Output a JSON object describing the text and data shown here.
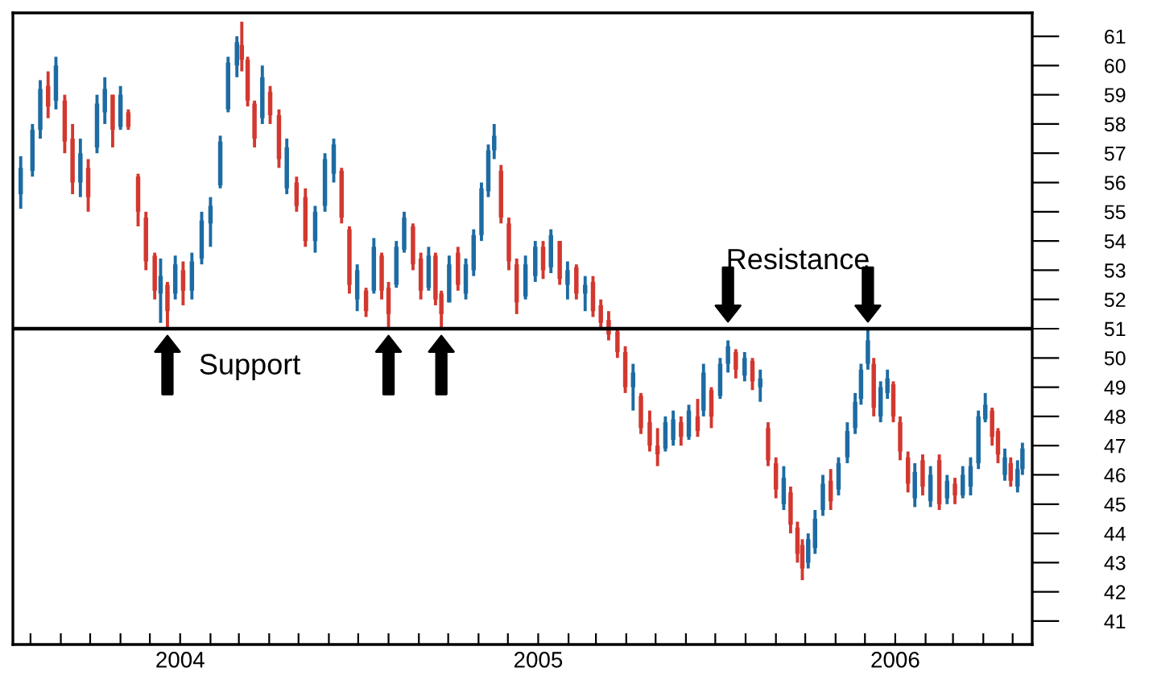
{
  "chart_data": {
    "type": "candlestick",
    "x": [
      "2003-07-22",
      "2003-08-03",
      "2003-08-11",
      "2003-08-19",
      "2003-08-27",
      "2003-09-05",
      "2003-09-13",
      "2003-09-21",
      "2003-09-29",
      "2003-10-08",
      "2003-10-16",
      "2003-10-24",
      "2003-11-01",
      "2003-11-09",
      "2003-11-19",
      "2003-11-27",
      "2003-12-06",
      "2003-12-12",
      "2003-12-19",
      "2003-12-27",
      "2004-01-04",
      "2004-01-13",
      "2004-01-23",
      "2004-02-01",
      "2004-02-11",
      "2004-02-19",
      "2004-02-28",
      "2004-03-04",
      "2004-03-10",
      "2004-03-17",
      "2004-03-25",
      "2004-04-02",
      "2004-04-11",
      "2004-04-19",
      "2004-04-29",
      "2004-05-08",
      "2004-05-18",
      "2004-05-28",
      "2004-06-06",
      "2004-06-14",
      "2004-06-22",
      "2004-06-30",
      "2004-07-09",
      "2004-07-17",
      "2004-07-25",
      "2004-08-01",
      "2004-08-09",
      "2004-08-17",
      "2004-08-26",
      "2004-09-03",
      "2004-09-11",
      "2004-09-18",
      "2004-09-24",
      "2004-10-02",
      "2004-10-11",
      "2004-10-19",
      "2004-10-27",
      "2004-11-04",
      "2004-11-11",
      "2004-11-17",
      "2004-11-24",
      "2004-12-02",
      "2004-12-10",
      "2004-12-19",
      "2004-12-29",
      "2005-01-06",
      "2005-01-14",
      "2005-01-23",
      "2005-01-31",
      "2005-02-09",
      "2005-02-18",
      "2005-02-26",
      "2005-03-06",
      "2005-03-14",
      "2005-03-23",
      "2005-03-31",
      "2005-04-08",
      "2005-04-16",
      "2005-04-25",
      "2005-05-03",
      "2005-05-11",
      "2005-05-19",
      "2005-05-27",
      "2005-06-04",
      "2005-06-13",
      "2005-06-19",
      "2005-06-27",
      "2005-07-06",
      "2005-07-14",
      "2005-07-22",
      "2005-07-31",
      "2005-08-08",
      "2005-08-16",
      "2005-08-24",
      "2005-09-01",
      "2005-09-09",
      "2005-09-16",
      "2005-09-23",
      "2005-09-28",
      "2005-10-04",
      "2005-10-11",
      "2005-10-19",
      "2005-10-27",
      "2005-11-04",
      "2005-11-13",
      "2005-11-21",
      "2005-11-27",
      "2005-12-04",
      "2005-12-10",
      "2005-12-17",
      "2005-12-24",
      "2005-12-30",
      "2006-01-06",
      "2006-01-14",
      "2006-01-21",
      "2006-01-29",
      "2006-02-06",
      "2006-02-15",
      "2006-02-23",
      "2006-03-03",
      "2006-03-11",
      "2006-03-19",
      "2006-03-27",
      "2006-04-03",
      "2006-04-10",
      "2006-04-16",
      "2006-04-23",
      "2006-04-29",
      "2006-05-06",
      "2006-05-11"
    ],
    "ohlc": [
      [
        55.6,
        56.9,
        55.1,
        56.5
      ],
      [
        56.4,
        58.0,
        56.2,
        57.8
      ],
      [
        57.8,
        59.5,
        57.5,
        59.2
      ],
      [
        59.3,
        59.8,
        58.2,
        58.6
      ],
      [
        58.8,
        60.3,
        58.5,
        60.0
      ],
      [
        58.8,
        59.0,
        57.0,
        57.4
      ],
      [
        57.5,
        58.0,
        55.6,
        56.0
      ],
      [
        56.0,
        57.5,
        55.5,
        57.0
      ],
      [
        56.5,
        56.8,
        55.0,
        55.5
      ],
      [
        57.2,
        59.0,
        57.0,
        58.7
      ],
      [
        58.4,
        59.6,
        58.0,
        59.2
      ],
      [
        59.0,
        59.0,
        57.2,
        57.8
      ],
      [
        57.9,
        59.3,
        57.8,
        59.0
      ],
      [
        58.4,
        58.5,
        57.8,
        57.9
      ],
      [
        56.2,
        56.3,
        54.5,
        55.0
      ],
      [
        54.8,
        55.0,
        53.0,
        53.3
      ],
      [
        53.5,
        53.6,
        52.0,
        52.3
      ],
      [
        52.2,
        53.4,
        51.2,
        52.8
      ],
      [
        52.5,
        52.6,
        51.0,
        51.6
      ],
      [
        52.2,
        53.5,
        52.0,
        53.2
      ],
      [
        53.0,
        53.3,
        51.8,
        52.3
      ],
      [
        52.3,
        53.6,
        52.0,
        53.3
      ],
      [
        53.4,
        55.0,
        53.2,
        54.7
      ],
      [
        54.6,
        55.5,
        53.8,
        55.2
      ],
      [
        55.9,
        57.6,
        55.8,
        57.4
      ],
      [
        58.5,
        60.3,
        58.4,
        60.1
      ],
      [
        60.0,
        61.0,
        59.6,
        60.8
      ],
      [
        60.7,
        61.5,
        59.8,
        60.2
      ],
      [
        60.2,
        60.3,
        58.6,
        58.8
      ],
      [
        58.7,
        58.8,
        57.2,
        57.5
      ],
      [
        58.2,
        60.0,
        58.0,
        59.6
      ],
      [
        59.1,
        59.3,
        58.0,
        58.3
      ],
      [
        58.3,
        58.5,
        56.5,
        56.8
      ],
      [
        55.8,
        57.5,
        55.6,
        57.2
      ],
      [
        56.0,
        56.2,
        55.0,
        55.2
      ],
      [
        55.5,
        55.8,
        53.8,
        54.0
      ],
      [
        54.0,
        55.2,
        53.6,
        55.0
      ],
      [
        55.2,
        57.0,
        55.0,
        56.8
      ],
      [
        56.3,
        57.5,
        56.0,
        57.3
      ],
      [
        56.4,
        56.5,
        54.6,
        54.8
      ],
      [
        54.4,
        54.5,
        52.2,
        52.5
      ],
      [
        52.0,
        53.2,
        51.6,
        53.0
      ],
      [
        52.3,
        52.4,
        51.4,
        51.6
      ],
      [
        52.3,
        54.1,
        52.2,
        53.8
      ],
      [
        53.5,
        53.6,
        52.0,
        52.3
      ],
      [
        52.4,
        52.6,
        51.0,
        51.5
      ],
      [
        52.5,
        54.0,
        52.4,
        53.8
      ],
      [
        53.7,
        55.0,
        53.6,
        54.8
      ],
      [
        54.5,
        54.6,
        53.0,
        53.2
      ],
      [
        53.4,
        53.6,
        52.0,
        52.3
      ],
      [
        52.4,
        53.8,
        52.3,
        53.5
      ],
      [
        53.5,
        53.6,
        51.8,
        52.0
      ],
      [
        52.2,
        52.3,
        51.0,
        51.5
      ],
      [
        51.9,
        53.5,
        51.9,
        53.2
      ],
      [
        53.6,
        53.8,
        52.3,
        52.5
      ],
      [
        52.2,
        53.4,
        52.0,
        53.2
      ],
      [
        53.0,
        54.4,
        52.8,
        54.2
      ],
      [
        54.2,
        56.0,
        54.0,
        55.8
      ],
      [
        55.7,
        57.3,
        55.5,
        57.1
      ],
      [
        57.1,
        58.0,
        56.8,
        57.6
      ],
      [
        56.4,
        56.6,
        54.6,
        54.8
      ],
      [
        54.6,
        54.8,
        53.0,
        53.3
      ],
      [
        53.2,
        53.4,
        51.5,
        51.9
      ],
      [
        52.1,
        53.5,
        52.0,
        53.2
      ],
      [
        52.8,
        54.0,
        52.6,
        53.8
      ],
      [
        53.8,
        54.0,
        52.7,
        53.0
      ],
      [
        53.1,
        54.4,
        52.9,
        54.2
      ],
      [
        54.0,
        54.0,
        52.5,
        52.7
      ],
      [
        52.5,
        53.3,
        52.0,
        53.0
      ],
      [
        53.1,
        53.2,
        52.0,
        52.2
      ],
      [
        52.2,
        52.8,
        51.6,
        52.5
      ],
      [
        52.6,
        52.8,
        51.4,
        51.6
      ],
      [
        51.8,
        52.0,
        51.0,
        51.2
      ],
      [
        51.3,
        51.6,
        50.6,
        50.8
      ],
      [
        50.9,
        51.0,
        50.0,
        50.2
      ],
      [
        50.2,
        50.4,
        48.8,
        49.0
      ],
      [
        49.0,
        49.8,
        48.2,
        49.5
      ],
      [
        48.7,
        48.8,
        47.4,
        47.6
      ],
      [
        47.8,
        48.2,
        46.8,
        47.0
      ],
      [
        47.0,
        47.6,
        46.3,
        46.7
      ],
      [
        46.9,
        48.0,
        46.8,
        47.8
      ],
      [
        47.2,
        48.2,
        47.0,
        47.9
      ],
      [
        47.8,
        48.0,
        47.0,
        47.3
      ],
      [
        47.3,
        48.4,
        47.2,
        48.2
      ],
      [
        48.0,
        48.6,
        47.3,
        47.5
      ],
      [
        48.2,
        49.8,
        48.0,
        49.5
      ],
      [
        48.9,
        49.0,
        47.6,
        48.0
      ],
      [
        48.7,
        50.0,
        48.6,
        49.8
      ],
      [
        49.8,
        50.6,
        49.5,
        50.4
      ],
      [
        50.2,
        50.3,
        49.3,
        49.6
      ],
      [
        49.4,
        50.2,
        49.2,
        50.0
      ],
      [
        49.9,
        50.0,
        48.9,
        49.2
      ],
      [
        49.0,
        49.6,
        48.5,
        49.3
      ],
      [
        47.6,
        47.8,
        46.3,
        46.5
      ],
      [
        46.4,
        46.6,
        45.2,
        45.5
      ],
      [
        45.0,
        46.3,
        44.8,
        45.9
      ],
      [
        45.4,
        45.6,
        44.0,
        44.3
      ],
      [
        44.2,
        44.4,
        43.0,
        43.3
      ],
      [
        43.6,
        43.8,
        42.4,
        42.8
      ],
      [
        43.0,
        44.0,
        42.8,
        43.8
      ],
      [
        43.5,
        44.8,
        43.3,
        44.5
      ],
      [
        44.8,
        46.0,
        44.6,
        45.7
      ],
      [
        45.8,
        46.2,
        44.8,
        45.1
      ],
      [
        45.5,
        46.6,
        45.3,
        46.4
      ],
      [
        46.6,
        47.8,
        46.4,
        47.5
      ],
      [
        47.6,
        48.8,
        47.4,
        48.5
      ],
      [
        48.6,
        49.8,
        48.4,
        49.6
      ],
      [
        49.8,
        51.0,
        49.6,
        50.6
      ],
      [
        49.8,
        50.0,
        48.0,
        48.3
      ],
      [
        48.0,
        49.2,
        47.8,
        49.0
      ],
      [
        48.8,
        49.6,
        48.6,
        49.3
      ],
      [
        49.1,
        49.2,
        47.8,
        48.0
      ],
      [
        47.8,
        48.0,
        46.5,
        46.8
      ],
      [
        46.6,
        46.8,
        45.4,
        45.7
      ],
      [
        45.2,
        46.4,
        44.9,
        46.1
      ],
      [
        46.5,
        46.7,
        45.3,
        45.6
      ],
      [
        45.1,
        46.3,
        44.9,
        46.0
      ],
      [
        46.5,
        46.7,
        44.8,
        45.0
      ],
      [
        45.2,
        46.0,
        45.0,
        45.8
      ],
      [
        45.7,
        45.9,
        45.0,
        45.3
      ],
      [
        45.3,
        46.3,
        45.2,
        46.0
      ],
      [
        45.6,
        46.6,
        45.3,
        46.3
      ],
      [
        46.4,
        48.2,
        46.2,
        48.0
      ],
      [
        47.9,
        48.8,
        47.8,
        48.4
      ],
      [
        48.2,
        48.3,
        47.0,
        47.3
      ],
      [
        47.5,
        47.6,
        46.4,
        46.7
      ],
      [
        46.0,
        46.9,
        45.8,
        46.6
      ],
      [
        46.4,
        46.6,
        45.6,
        45.8
      ],
      [
        45.6,
        46.5,
        45.4,
        46.2
      ],
      [
        46.2,
        47.1,
        46.0,
        46.9
      ]
    ],
    "colors": [
      "#1d6ba3",
      "#1d6ba3",
      "#1d6ba3",
      "#d2382f",
      "#1d6ba3",
      "#d2382f",
      "#d2382f",
      "#1d6ba3",
      "#d2382f",
      "#1d6ba3",
      "#1d6ba3",
      "#d2382f",
      "#1d6ba3",
      "#d2382f",
      "#d2382f",
      "#d2382f",
      "#d2382f",
      "#1d6ba3",
      "#d2382f",
      "#1d6ba3",
      "#d2382f",
      "#1d6ba3",
      "#1d6ba3",
      "#1d6ba3",
      "#1d6ba3",
      "#1d6ba3",
      "#1d6ba3",
      "#d2382f",
      "#d2382f",
      "#d2382f",
      "#1d6ba3",
      "#d2382f",
      "#d2382f",
      "#1d6ba3",
      "#d2382f",
      "#d2382f",
      "#1d6ba3",
      "#1d6ba3",
      "#1d6ba3",
      "#d2382f",
      "#d2382f",
      "#1d6ba3",
      "#d2382f",
      "#1d6ba3",
      "#d2382f",
      "#d2382f",
      "#1d6ba3",
      "#1d6ba3",
      "#d2382f",
      "#d2382f",
      "#1d6ba3",
      "#d2382f",
      "#d2382f",
      "#1d6ba3",
      "#d2382f",
      "#1d6ba3",
      "#1d6ba3",
      "#1d6ba3",
      "#1d6ba3",
      "#1d6ba3",
      "#d2382f",
      "#d2382f",
      "#d2382f",
      "#1d6ba3",
      "#1d6ba3",
      "#d2382f",
      "#1d6ba3",
      "#d2382f",
      "#1d6ba3",
      "#d2382f",
      "#1d6ba3",
      "#d2382f",
      "#d2382f",
      "#d2382f",
      "#d2382f",
      "#d2382f",
      "#1d6ba3",
      "#d2382f",
      "#d2382f",
      "#d2382f",
      "#1d6ba3",
      "#1d6ba3",
      "#d2382f",
      "#1d6ba3",
      "#d2382f",
      "#1d6ba3",
      "#d2382f",
      "#1d6ba3",
      "#1d6ba3",
      "#d2382f",
      "#1d6ba3",
      "#d2382f",
      "#1d6ba3",
      "#d2382f",
      "#d2382f",
      "#1d6ba3",
      "#d2382f",
      "#d2382f",
      "#d2382f",
      "#1d6ba3",
      "#1d6ba3",
      "#1d6ba3",
      "#d2382f",
      "#1d6ba3",
      "#1d6ba3",
      "#1d6ba3",
      "#1d6ba3",
      "#1d6ba3",
      "#d2382f",
      "#1d6ba3",
      "#1d6ba3",
      "#d2382f",
      "#d2382f",
      "#d2382f",
      "#1d6ba3",
      "#d2382f",
      "#1d6ba3",
      "#d2382f",
      "#1d6ba3",
      "#d2382f",
      "#1d6ba3",
      "#1d6ba3",
      "#1d6ba3",
      "#1d6ba3",
      "#d2382f",
      "#d2382f",
      "#1d6ba3",
      "#d2382f",
      "#1d6ba3",
      "#1d6ba3"
    ],
    "xlim": [
      "2003-07-14",
      "2006-05-21"
    ],
    "xticks": [
      {
        "value": "2003-08-01",
        "label": null
      },
      {
        "value": "2003-09-01",
        "label": null
      },
      {
        "value": "2003-10-01",
        "label": null
      },
      {
        "value": "2003-11-01",
        "label": null
      },
      {
        "value": "2003-12-01",
        "label": null
      },
      {
        "value": "2004-01-01",
        "label": "2004"
      },
      {
        "value": "2004-02-01",
        "label": null
      },
      {
        "value": "2004-03-01",
        "label": null
      },
      {
        "value": "2004-04-01",
        "label": null
      },
      {
        "value": "2004-05-01",
        "label": null
      },
      {
        "value": "2004-06-01",
        "label": null
      },
      {
        "value": "2004-07-01",
        "label": null
      },
      {
        "value": "2004-08-01",
        "label": null
      },
      {
        "value": "2004-09-01",
        "label": null
      },
      {
        "value": "2004-10-01",
        "label": null
      },
      {
        "value": "2004-11-01",
        "label": null
      },
      {
        "value": "2004-12-01",
        "label": null
      },
      {
        "value": "2005-01-01",
        "label": "2005"
      },
      {
        "value": "2005-02-01",
        "label": null
      },
      {
        "value": "2005-03-01",
        "label": null
      },
      {
        "value": "2005-04-01",
        "label": null
      },
      {
        "value": "2005-05-01",
        "label": null
      },
      {
        "value": "2005-06-01",
        "label": null
      },
      {
        "value": "2005-07-01",
        "label": null
      },
      {
        "value": "2005-08-01",
        "label": null
      },
      {
        "value": "2005-09-01",
        "label": null
      },
      {
        "value": "2005-10-01",
        "label": null
      },
      {
        "value": "2005-11-01",
        "label": null
      },
      {
        "value": "2005-12-01",
        "label": null
      },
      {
        "value": "2006-01-01",
        "label": "2006"
      },
      {
        "value": "2006-02-01",
        "label": null
      },
      {
        "value": "2006-03-01",
        "label": null
      },
      {
        "value": "2006-04-01",
        "label": null
      },
      {
        "value": "2006-05-01",
        "label": null
      }
    ],
    "ylim": [
      40.2,
      61.8
    ],
    "yticks": [
      41,
      42,
      43,
      44,
      45,
      46,
      47,
      48,
      49,
      50,
      51,
      52,
      53,
      54,
      55,
      56,
      57,
      58,
      59,
      60,
      61
    ],
    "ref_lines": [
      {
        "axis": "y",
        "value": 51,
        "label": null,
        "color": "#000000",
        "line_style": "solid"
      }
    ],
    "annotations": [
      "Support",
      "Resistance"
    ],
    "grid": false,
    "legend": false
  }
}
